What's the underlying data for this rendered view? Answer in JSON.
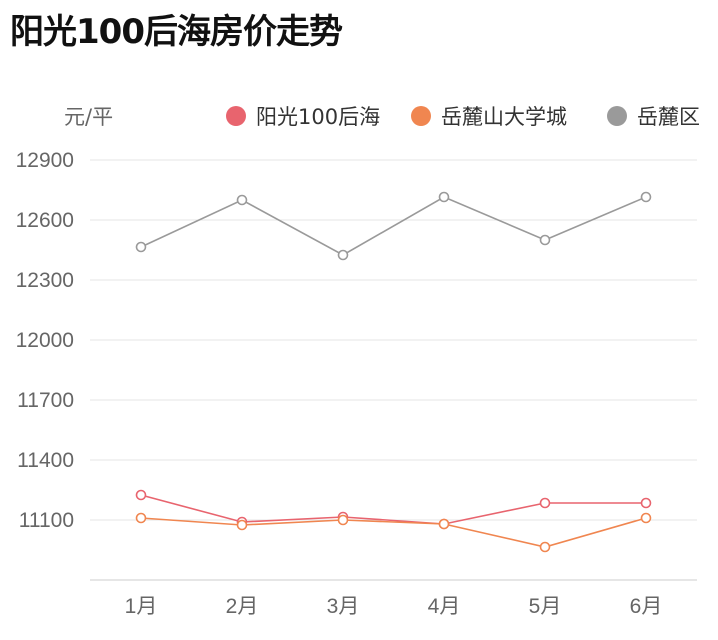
{
  "title": "阳光100后海房价走势",
  "chart_data": {
    "type": "line",
    "title": "阳光100后海房价走势",
    "ylabel": "元/平",
    "xlabel": "",
    "categories": [
      "1月",
      "2月",
      "3月",
      "4月",
      "5月",
      "6月"
    ],
    "ylim": [
      10800,
      12900
    ],
    "yticks": [
      11100,
      11400,
      11700,
      12000,
      12300,
      12600,
      12900
    ],
    "grid": true,
    "legend_position": "top",
    "series": [
      {
        "name": "阳光100后海",
        "color": "#e8646e",
        "values": [
          11225,
          11090,
          11115,
          11080,
          11185,
          11185
        ]
      },
      {
        "name": "岳麓山大学城",
        "color": "#f08650",
        "values": [
          11110,
          11075,
          11100,
          11080,
          10965,
          11110
        ]
      },
      {
        "name": "岳麓区",
        "color": "#9a9a9a",
        "values": [
          12465,
          12700,
          12425,
          12715,
          12500,
          12715
        ]
      }
    ]
  }
}
